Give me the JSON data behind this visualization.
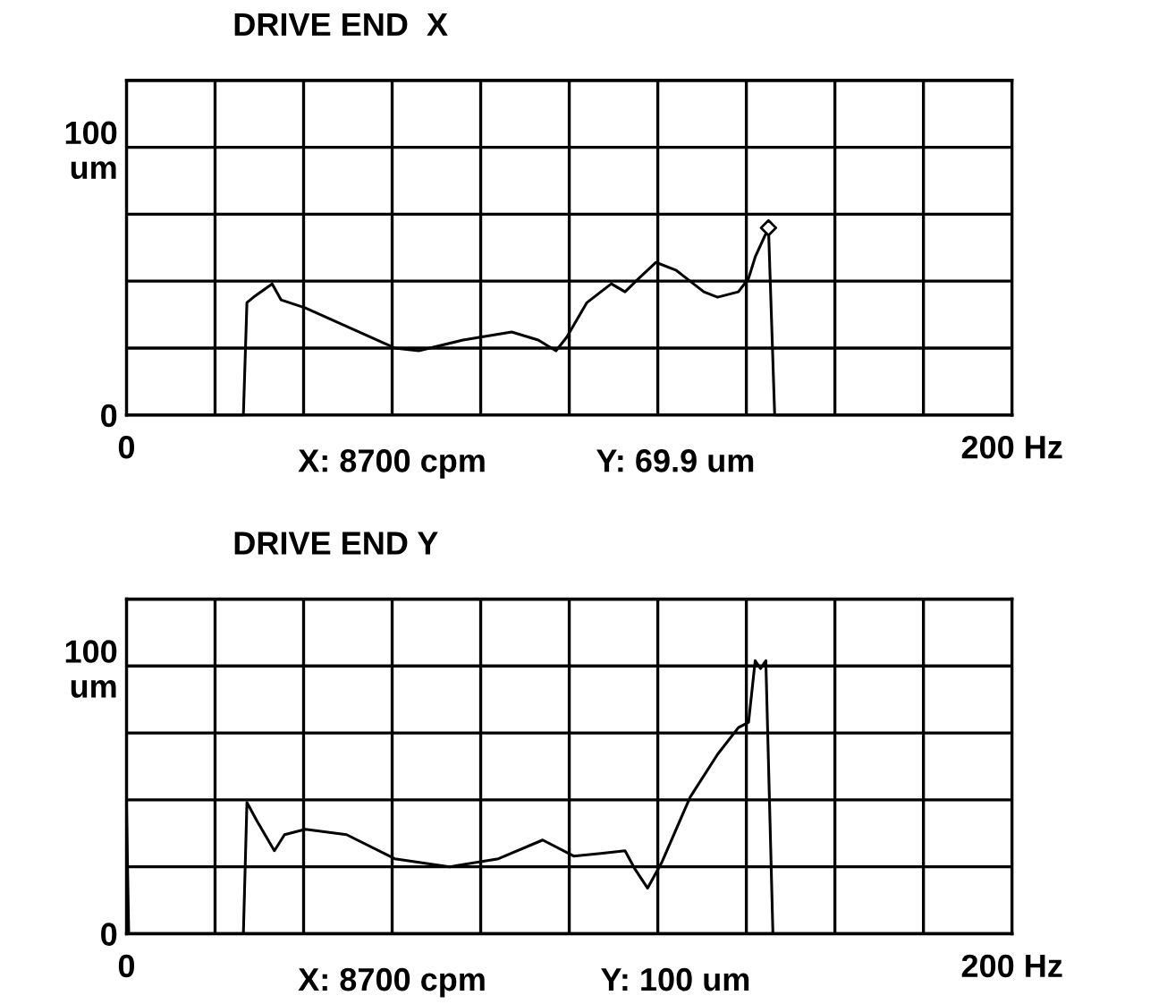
{
  "chart_data": [
    {
      "type": "line",
      "title": "DRIVE END  X",
      "xlim": [
        0,
        200
      ],
      "ylim": [
        0,
        125
      ],
      "xticks": [
        {
          "value": 0,
          "label": "0"
        },
        {
          "value": 20,
          "label": null
        },
        {
          "value": 40,
          "label": null
        },
        {
          "value": 60,
          "label": null
        },
        {
          "value": 80,
          "label": null
        },
        {
          "value": 100,
          "label": null
        },
        {
          "value": 120,
          "label": null
        },
        {
          "value": 140,
          "label": null
        },
        {
          "value": 160,
          "label": null
        },
        {
          "value": 180,
          "label": null
        },
        {
          "value": 200,
          "label": "200 Hz"
        }
      ],
      "yticks": [
        {
          "value": 0,
          "label": "0"
        },
        {
          "value": 25,
          "label": null
        },
        {
          "value": 50,
          "label": null
        },
        {
          "value": 75,
          "label": null
        },
        {
          "value": 100,
          "label": "100\num"
        },
        {
          "value": 125,
          "label": null
        }
      ],
      "grid": true,
      "annotations": [
        "X: 8700 cpm",
        "Y: 69.9 um"
      ],
      "series": [
        {
          "color": "#000000",
          "x": [
            0,
            26.4,
            27.2,
            28.7,
            32.9,
            34.9,
            40.4,
            60.6,
            66,
            76,
            87,
            93,
            97,
            99.4,
            104,
            109.5,
            112.6,
            115.7,
            119.6,
            124.2,
            130.4,
            133.5,
            138.2,
            140.5,
            142,
            145,
            146.4,
            200
          ],
          "values": [
            0,
            0,
            42,
            44,
            49,
            43,
            40,
            25,
            24,
            28,
            31,
            28,
            24,
            29,
            42,
            49,
            46,
            51,
            57,
            54,
            46,
            44,
            46,
            51,
            59,
            69.9,
            0,
            0
          ]
        },
        {
          "type": "scatter",
          "color": "#000000",
          "marker": "diamond",
          "x": [
            145
          ],
          "values": [
            69.9
          ]
        }
      ]
    },
    {
      "type": "line",
      "title": "DRIVE END Y",
      "xlim": [
        0,
        200
      ],
      "ylim": [
        0,
        125
      ],
      "xticks": [
        {
          "value": 0,
          "label": "0"
        },
        {
          "value": 20,
          "label": null
        },
        {
          "value": 40,
          "label": null
        },
        {
          "value": 60,
          "label": null
        },
        {
          "value": 80,
          "label": null
        },
        {
          "value": 100,
          "label": null
        },
        {
          "value": 120,
          "label": null
        },
        {
          "value": 140,
          "label": null
        },
        {
          "value": 160,
          "label": null
        },
        {
          "value": 180,
          "label": null
        },
        {
          "value": 200,
          "label": "200 Hz"
        }
      ],
      "yticks": [
        {
          "value": 0,
          "label": "0"
        },
        {
          "value": 25,
          "label": null
        },
        {
          "value": 50,
          "label": null
        },
        {
          "value": 75,
          "label": null
        },
        {
          "value": 100,
          "label": "100\num"
        },
        {
          "value": 125,
          "label": null
        }
      ],
      "grid": true,
      "annotations": [
        "X: 8700 cpm",
        "Y: 100 um"
      ],
      "series": [
        {
          "color": "#000000",
          "x": [
            0,
            0.5,
            26.4,
            27.2,
            29.5,
            33.4,
            35.7,
            40.4,
            49.7,
            60.6,
            73,
            84,
            94,
            101,
            107.1,
            112.6,
            114.9,
            117.7,
            121,
            127.3,
            133.5,
            138.2,
            140.5,
            142,
            143.2,
            144.4,
            146,
            200
          ],
          "values": [
            48,
            0,
            0,
            49,
            42,
            31,
            37,
            39,
            37,
            28,
            25,
            28,
            35,
            29,
            30,
            31,
            24,
            17,
            27,
            51,
            67,
            77,
            79,
            102,
            99,
            102,
            0,
            0
          ]
        }
      ]
    }
  ]
}
